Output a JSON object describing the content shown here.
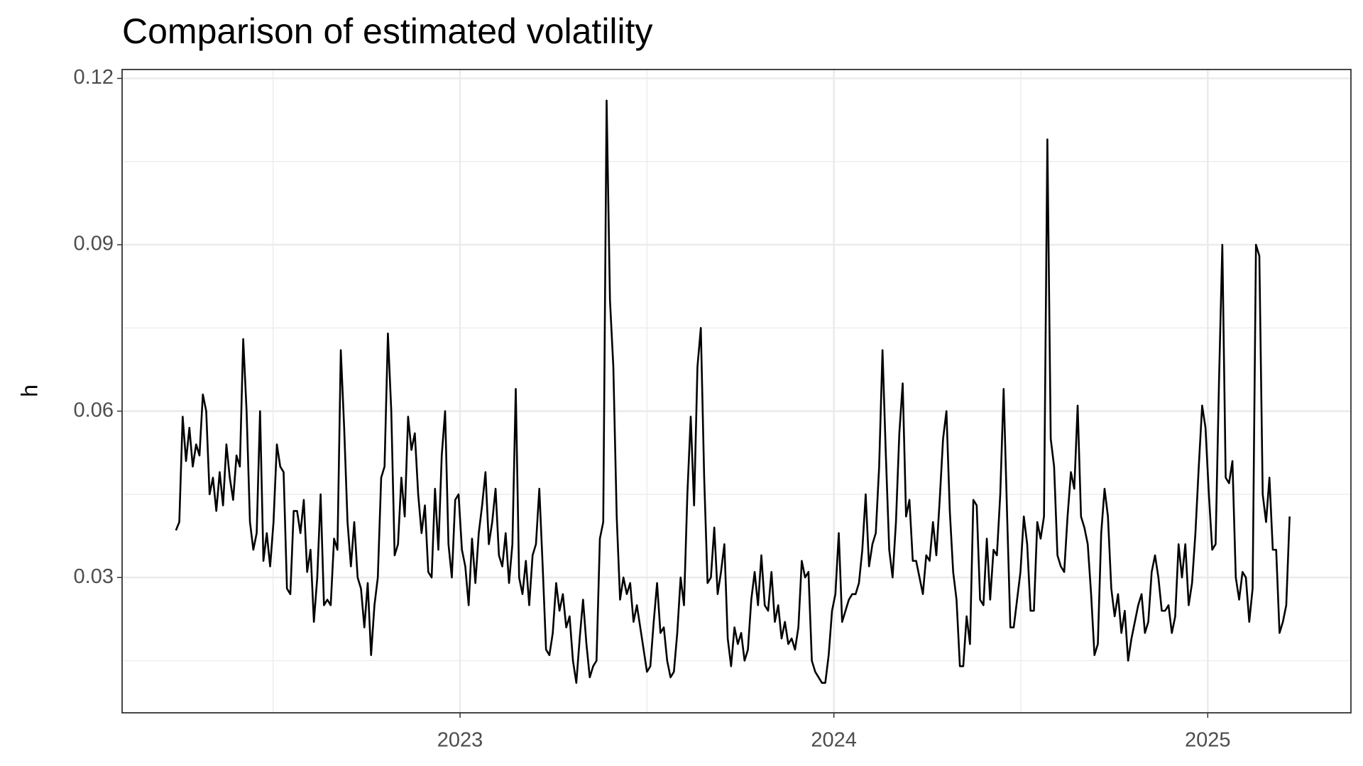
{
  "chart_data": {
    "type": "line",
    "title": "Comparison of estimated volatility",
    "y_label": "h",
    "grid": true,
    "color": "#000000",
    "xlim": [
      2022.096,
      2025.383
    ],
    "xticks": [
      2023,
      2024,
      2025
    ],
    "ylim": [
      0.0056,
      0.1216
    ],
    "yticks": [
      0.03,
      0.06,
      0.09,
      0.12
    ],
    "x": [
      2022.24,
      2022.249,
      2022.258,
      2022.267,
      2022.276,
      2022.285,
      2022.294,
      2022.303,
      2022.312,
      2022.321,
      2022.33,
      2022.339,
      2022.348,
      2022.357,
      2022.366,
      2022.375,
      2022.384,
      2022.393,
      2022.402,
      2022.411,
      2022.42,
      2022.429,
      2022.438,
      2022.447,
      2022.456,
      2022.465,
      2022.474,
      2022.483,
      2022.492,
      2022.501,
      2022.51,
      2022.519,
      2022.528,
      2022.537,
      2022.546,
      2022.555,
      2022.564,
      2022.573,
      2022.582,
      2022.591,
      2022.6,
      2022.609,
      2022.618,
      2022.627,
      2022.636,
      2022.645,
      2022.654,
      2022.663,
      2022.672,
      2022.681,
      2022.69,
      2022.699,
      2022.708,
      2022.717,
      2022.726,
      2022.735,
      2022.744,
      2022.753,
      2022.762,
      2022.771,
      2022.78,
      2022.789,
      2022.798,
      2022.807,
      2022.816,
      2022.825,
      2022.834,
      2022.843,
      2022.852,
      2022.861,
      2022.87,
      2022.879,
      2022.888,
      2022.897,
      2022.906,
      2022.915,
      2022.924,
      2022.933,
      2022.942,
      2022.951,
      2022.96,
      2022.969,
      2022.978,
      2022.987,
      2022.996,
      2023.005,
      2023.014,
      2023.023,
      2023.032,
      2023.041,
      2023.05,
      2023.059,
      2023.068,
      2023.077,
      2023.086,
      2023.095,
      2023.104,
      2023.113,
      2023.122,
      2023.131,
      2023.14,
      2023.149,
      2023.158,
      2023.167,
      2023.176,
      2023.185,
      2023.194,
      2023.203,
      2023.212,
      2023.221,
      2023.23,
      2023.239,
      2023.248,
      2023.257,
      2023.266,
      2023.275,
      2023.284,
      2023.293,
      2023.302,
      2023.311,
      2023.32,
      2023.329,
      2023.338,
      2023.347,
      2023.356,
      2023.365,
      2023.374,
      2023.383,
      2023.392,
      2023.401,
      2023.41,
      2023.419,
      2023.428,
      2023.437,
      2023.446,
      2023.455,
      2023.464,
      2023.473,
      2023.482,
      2023.491,
      2023.5,
      2023.509,
      2023.518,
      2023.527,
      2023.536,
      2023.545,
      2023.554,
      2023.563,
      2023.572,
      2023.581,
      2023.59,
      2023.599,
      2023.608,
      2023.617,
      2023.626,
      2023.635,
      2023.644,
      2023.653,
      2023.662,
      2023.671,
      2023.68,
      2023.689,
      2023.698,
      2023.707,
      2023.716,
      2023.725,
      2023.734,
      2023.743,
      2023.752,
      2023.761,
      2023.77,
      2023.779,
      2023.788,
      2023.797,
      2023.806,
      2023.815,
      2023.824,
      2023.833,
      2023.842,
      2023.851,
      2023.86,
      2023.869,
      2023.878,
      2023.887,
      2023.896,
      2023.905,
      2023.914,
      2023.923,
      2023.932,
      2023.941,
      2023.95,
      2023.959,
      2023.968,
      2023.977,
      2023.986,
      2023.995,
      2024.004,
      2024.013,
      2024.022,
      2024.031,
      2024.04,
      2024.049,
      2024.058,
      2024.067,
      2024.076,
      2024.085,
      2024.094,
      2024.103,
      2024.112,
      2024.121,
      2024.13,
      2024.139,
      2024.148,
      2024.157,
      2024.166,
      2024.175,
      2024.184,
      2024.193,
      2024.202,
      2024.211,
      2024.22,
      2024.229,
      2024.238,
      2024.247,
      2024.256,
      2024.265,
      2024.274,
      2024.283,
      2024.292,
      2024.301,
      2024.31,
      2024.319,
      2024.328,
      2024.337,
      2024.346,
      2024.355,
      2024.364,
      2024.373,
      2024.382,
      2024.391,
      2024.4,
      2024.409,
      2024.418,
      2024.427,
      2024.436,
      2024.445,
      2024.454,
      2024.463,
      2024.472,
      2024.481,
      2024.49,
      2024.499,
      2024.508,
      2024.517,
      2024.526,
      2024.535,
      2024.544,
      2024.553,
      2024.562,
      2024.571,
      2024.58,
      2024.589,
      2024.598,
      2024.607,
      2024.616,
      2024.625,
      2024.634,
      2024.643,
      2024.652,
      2024.661,
      2024.67,
      2024.679,
      2024.688,
      2024.697,
      2024.706,
      2024.715,
      2024.724,
      2024.733,
      2024.742,
      2024.751,
      2024.76,
      2024.769,
      2024.778,
      2024.787,
      2024.796,
      2024.805,
      2024.814,
      2024.823,
      2024.832,
      2024.841,
      2024.85,
      2024.859,
      2024.868,
      2024.877,
      2024.886,
      2024.895,
      2024.904,
      2024.913,
      2024.922,
      2024.931,
      2024.94,
      2024.949,
      2024.958,
      2024.967,
      2024.976,
      2024.985,
      2024.994,
      2025.003,
      2025.012,
      2025.021,
      2025.03,
      2025.039,
      2025.048,
      2025.057,
      2025.066,
      2025.075,
      2025.084,
      2025.093,
      2025.102,
      2025.111,
      2025.12,
      2025.129,
      2025.138,
      2025.147,
      2025.156,
      2025.165,
      2025.174,
      2025.183,
      2025.192,
      2025.201,
      2025.21,
      2025.219
    ],
    "values": [
      0.0385,
      0.04,
      0.059,
      0.051,
      0.057,
      0.05,
      0.054,
      0.052,
      0.063,
      0.06,
      0.045,
      0.048,
      0.042,
      0.049,
      0.043,
      0.054,
      0.048,
      0.044,
      0.052,
      0.05,
      0.073,
      0.06,
      0.04,
      0.035,
      0.038,
      0.06,
      0.033,
      0.038,
      0.032,
      0.04,
      0.054,
      0.05,
      0.049,
      0.028,
      0.027,
      0.042,
      0.042,
      0.038,
      0.044,
      0.031,
      0.035,
      0.022,
      0.03,
      0.045,
      0.025,
      0.026,
      0.025,
      0.037,
      0.035,
      0.071,
      0.057,
      0.04,
      0.032,
      0.04,
      0.03,
      0.028,
      0.021,
      0.029,
      0.016,
      0.025,
      0.03,
      0.048,
      0.05,
      0.074,
      0.06,
      0.034,
      0.036,
      0.048,
      0.041,
      0.059,
      0.053,
      0.056,
      0.045,
      0.038,
      0.043,
      0.031,
      0.03,
      0.046,
      0.035,
      0.052,
      0.06,
      0.036,
      0.03,
      0.044,
      0.045,
      0.035,
      0.032,
      0.025,
      0.037,
      0.029,
      0.038,
      0.043,
      0.049,
      0.036,
      0.04,
      0.046,
      0.034,
      0.032,
      0.038,
      0.029,
      0.036,
      0.064,
      0.03,
      0.027,
      0.033,
      0.025,
      0.034,
      0.036,
      0.046,
      0.032,
      0.017,
      0.016,
      0.02,
      0.029,
      0.024,
      0.027,
      0.021,
      0.023,
      0.015,
      0.011,
      0.019,
      0.026,
      0.018,
      0.012,
      0.014,
      0.015,
      0.037,
      0.04,
      0.116,
      0.08,
      0.068,
      0.041,
      0.026,
      0.03,
      0.027,
      0.029,
      0.022,
      0.025,
      0.021,
      0.017,
      0.013,
      0.014,
      0.022,
      0.029,
      0.02,
      0.021,
      0.015,
      0.012,
      0.013,
      0.02,
      0.03,
      0.025,
      0.045,
      0.059,
      0.043,
      0.068,
      0.075,
      0.048,
      0.029,
      0.03,
      0.039,
      0.027,
      0.031,
      0.036,
      0.019,
      0.014,
      0.021,
      0.018,
      0.02,
      0.015,
      0.017,
      0.026,
      0.031,
      0.025,
      0.034,
      0.025,
      0.024,
      0.031,
      0.022,
      0.025,
      0.019,
      0.022,
      0.018,
      0.019,
      0.017,
      0.021,
      0.033,
      0.03,
      0.031,
      0.015,
      0.013,
      0.012,
      0.011,
      0.011,
      0.016,
      0.024,
      0.027,
      0.038,
      0.022,
      0.024,
      0.026,
      0.027,
      0.027,
      0.029,
      0.035,
      0.045,
      0.032,
      0.036,
      0.038,
      0.05,
      0.071,
      0.052,
      0.035,
      0.03,
      0.04,
      0.056,
      0.065,
      0.041,
      0.044,
      0.033,
      0.033,
      0.03,
      0.027,
      0.034,
      0.033,
      0.04,
      0.034,
      0.044,
      0.055,
      0.06,
      0.042,
      0.031,
      0.026,
      0.014,
      0.014,
      0.023,
      0.018,
      0.044,
      0.043,
      0.026,
      0.025,
      0.037,
      0.026,
      0.035,
      0.034,
      0.045,
      0.064,
      0.042,
      0.021,
      0.021,
      0.026,
      0.031,
      0.041,
      0.036,
      0.024,
      0.024,
      0.04,
      0.037,
      0.041,
      0.109,
      0.055,
      0.05,
      0.034,
      0.032,
      0.031,
      0.041,
      0.049,
      0.046,
      0.061,
      0.041,
      0.039,
      0.036,
      0.027,
      0.016,
      0.018,
      0.038,
      0.046,
      0.041,
      0.028,
      0.023,
      0.027,
      0.02,
      0.024,
      0.015,
      0.019,
      0.022,
      0.025,
      0.027,
      0.02,
      0.022,
      0.031,
      0.034,
      0.03,
      0.024,
      0.024,
      0.025,
      0.02,
      0.023,
      0.036,
      0.03,
      0.036,
      0.025,
      0.029,
      0.038,
      0.05,
      0.061,
      0.057,
      0.045,
      0.035,
      0.036,
      0.065,
      0.09,
      0.048,
      0.047,
      0.051,
      0.03,
      0.026,
      0.031,
      0.03,
      0.022,
      0.028,
      0.09,
      0.088,
      0.045,
      0.04,
      0.048,
      0.035,
      0.035,
      0.02,
      0.022,
      0.025,
      0.041
    ]
  }
}
